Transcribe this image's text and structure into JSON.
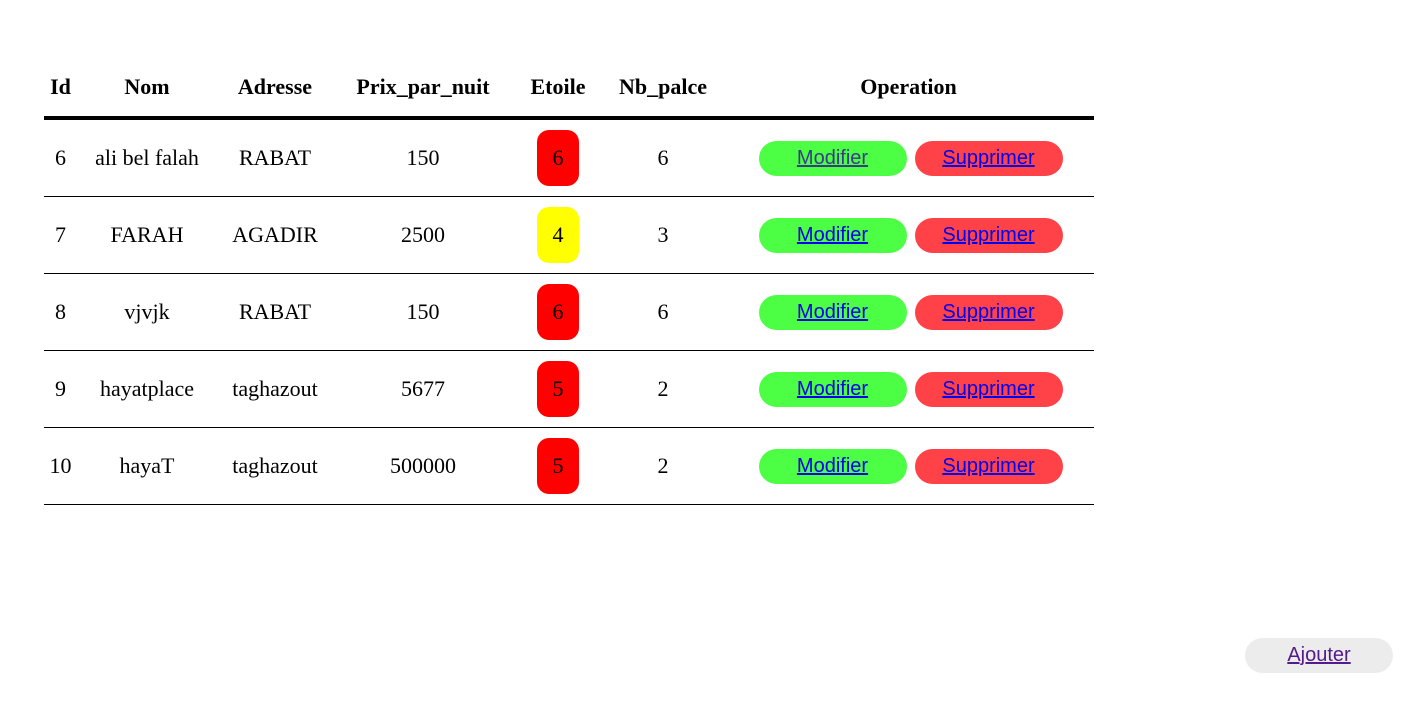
{
  "table": {
    "headers": {
      "id": "Id",
      "nom": "Nom",
      "adresse": "Adresse",
      "prix": "Prix_par_nuit",
      "etoile": "Etoile",
      "nb": "Nb_palce",
      "operation": "Operation"
    },
    "rows": [
      {
        "id": "6",
        "nom": "ali bel falah",
        "adresse": "RABAT",
        "prix": "150",
        "etoile": "6",
        "etoile_color": "#ff0000",
        "nb": "6",
        "edit_label": "Modifier",
        "edit_color": "#3a3a8a",
        "delete_label": "Supprimer"
      },
      {
        "id": "7",
        "nom": "FARAH",
        "adresse": "AGADIR",
        "prix": "2500",
        "etoile": "4",
        "etoile_color": "#ffff00",
        "nb": "3",
        "edit_label": "Modifier",
        "edit_color": "#0000ee",
        "delete_label": "Supprimer"
      },
      {
        "id": "8",
        "nom": "vjvjk",
        "adresse": "RABAT",
        "prix": "150",
        "etoile": "6",
        "etoile_color": "#ff0000",
        "nb": "6",
        "edit_label": "Modifier",
        "edit_color": "#0000ee",
        "delete_label": "Supprimer"
      },
      {
        "id": "9",
        "nom": "hayatplace",
        "adresse": "taghazout",
        "prix": "5677",
        "etoile": "5",
        "etoile_color": "#ff0000",
        "nb": "2",
        "edit_label": "Modifier",
        "edit_color": "#0000ee",
        "delete_label": "Supprimer"
      },
      {
        "id": "10",
        "nom": "hayaT",
        "adresse": "taghazout",
        "prix": "500000",
        "etoile": "5",
        "etoile_color": "#ff0000",
        "nb": "2",
        "edit_label": "Modifier",
        "edit_color": "#0000ee",
        "delete_label": "Supprimer"
      }
    ]
  },
  "colors": {
    "edit_button_bg": "#4cff44",
    "delete_button_bg": "#ff4248",
    "add_button_bg": "#ececec",
    "link": "#0000ee",
    "visited_link": "#551a8b"
  },
  "add_button": {
    "label": "Ajouter",
    "color": "#551a8b"
  }
}
